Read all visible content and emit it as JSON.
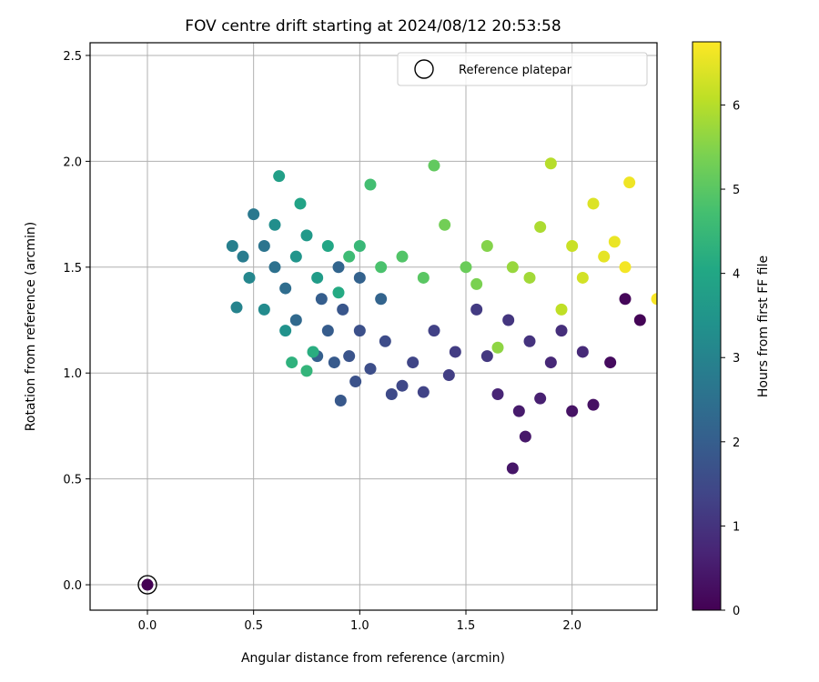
{
  "chart_data": {
    "type": "scatter",
    "title": "FOV centre drift starting at 2024/08/12 20:53:58",
    "xlabel": "Angular distance from reference (arcmin)",
    "ylabel": "Rotation from reference (arcmin)",
    "xlim": [
      -0.27,
      2.4
    ],
    "ylim": [
      -0.12,
      2.56
    ],
    "xticks": [
      "0.0",
      "0.5",
      "1.0",
      "1.5",
      "2.0"
    ],
    "xtick_values": [
      0,
      0.5,
      1.0,
      1.5,
      2.0
    ],
    "yticks": [
      "0.0",
      "0.5",
      "1.0",
      "1.5",
      "2.0",
      "2.5"
    ],
    "ytick_values": [
      0,
      0.5,
      1.0,
      1.5,
      2.0,
      2.5
    ],
    "grid": true,
    "legend": {
      "placement": "top-right",
      "entries": [
        "Reference platepar"
      ]
    },
    "colorbar": {
      "label": "Hours from first FF file",
      "colormap": "viridis",
      "range": [
        0,
        6.75
      ],
      "ticks": [
        "0",
        "1",
        "2",
        "3",
        "4",
        "5",
        "6"
      ],
      "tick_values": [
        0,
        1,
        2,
        3,
        4,
        5,
        6
      ]
    },
    "reference_point": {
      "x": 0.0,
      "y": 0.0,
      "c": 0.0
    },
    "series": [
      {
        "points": [
          [
            2.32,
            1.25,
            0.05
          ],
          [
            2.25,
            1.35,
            0.1
          ],
          [
            2.18,
            1.05,
            0.2
          ],
          [
            2.1,
            0.85,
            0.3
          ],
          [
            2.0,
            0.82,
            0.35
          ],
          [
            1.72,
            0.55,
            0.4
          ],
          [
            1.78,
            0.7,
            0.45
          ],
          [
            1.75,
            0.82,
            0.5
          ],
          [
            1.85,
            0.88,
            0.6
          ],
          [
            1.65,
            0.9,
            0.7
          ],
          [
            1.9,
            1.05,
            0.75
          ],
          [
            2.05,
            1.1,
            0.8
          ],
          [
            1.95,
            1.2,
            0.9
          ],
          [
            1.8,
            1.15,
            1.0
          ],
          [
            1.7,
            1.25,
            1.05
          ],
          [
            1.6,
            1.08,
            1.1
          ],
          [
            1.55,
            1.3,
            1.15
          ],
          [
            1.45,
            1.1,
            1.2
          ],
          [
            1.42,
            0.99,
            1.25
          ],
          [
            1.35,
            1.2,
            1.3
          ],
          [
            1.3,
            0.91,
            1.35
          ],
          [
            1.25,
            1.05,
            1.4
          ],
          [
            1.2,
            0.94,
            1.45
          ],
          [
            1.15,
            0.9,
            1.5
          ],
          [
            1.12,
            1.15,
            1.55
          ],
          [
            1.05,
            1.02,
            1.6
          ],
          [
            1.0,
            1.2,
            1.65
          ],
          [
            0.98,
            0.96,
            1.7
          ],
          [
            0.95,
            1.08,
            1.75
          ],
          [
            0.92,
            1.3,
            1.8
          ],
          [
            0.91,
            0.87,
            1.85
          ],
          [
            0.88,
            1.05,
            1.9
          ],
          [
            0.85,
            1.2,
            1.95
          ],
          [
            0.82,
            1.35,
            2.0
          ],
          [
            0.8,
            1.08,
            2.05
          ],
          [
            1.0,
            1.45,
            2.1
          ],
          [
            1.1,
            1.35,
            2.15
          ],
          [
            0.9,
            1.5,
            2.2
          ],
          [
            0.7,
            1.25,
            2.3
          ],
          [
            0.65,
            1.4,
            2.4
          ],
          [
            0.6,
            1.5,
            2.5
          ],
          [
            0.55,
            1.6,
            2.6
          ],
          [
            0.5,
            1.75,
            2.7
          ],
          [
            0.45,
            1.55,
            2.8
          ],
          [
            0.4,
            1.6,
            2.9
          ],
          [
            0.42,
            1.31,
            3.0
          ],
          [
            0.48,
            1.45,
            3.1
          ],
          [
            0.55,
            1.3,
            3.2
          ],
          [
            0.6,
            1.7,
            3.3
          ],
          [
            0.65,
            1.2,
            3.4
          ],
          [
            0.7,
            1.55,
            3.5
          ],
          [
            0.75,
            1.65,
            3.6
          ],
          [
            0.8,
            1.45,
            3.7
          ],
          [
            0.62,
            1.93,
            3.8
          ],
          [
            0.72,
            1.8,
            3.9
          ],
          [
            0.85,
            1.6,
            4.0
          ],
          [
            0.9,
            1.38,
            4.1
          ],
          [
            0.78,
            1.1,
            4.2
          ],
          [
            0.68,
            1.05,
            4.3
          ],
          [
            0.75,
            1.01,
            4.4
          ],
          [
            1.0,
            1.6,
            4.5
          ],
          [
            0.95,
            1.55,
            4.6
          ],
          [
            1.05,
            1.89,
            4.7
          ],
          [
            1.1,
            1.5,
            4.8
          ],
          [
            1.2,
            1.55,
            4.9
          ],
          [
            1.3,
            1.45,
            5.0
          ],
          [
            1.35,
            1.98,
            5.1
          ],
          [
            1.5,
            1.5,
            5.2
          ],
          [
            1.4,
            1.7,
            5.3
          ],
          [
            1.55,
            1.42,
            5.4
          ],
          [
            1.6,
            1.6,
            5.5
          ],
          [
            1.65,
            1.12,
            5.6
          ],
          [
            1.72,
            1.5,
            5.7
          ],
          [
            1.8,
            1.45,
            5.8
          ],
          [
            1.85,
            1.69,
            5.9
          ],
          [
            1.9,
            1.99,
            6.0
          ],
          [
            1.95,
            1.3,
            6.1
          ],
          [
            2.0,
            1.6,
            6.2
          ],
          [
            2.05,
            1.45,
            6.3
          ],
          [
            2.1,
            1.8,
            6.4
          ],
          [
            2.15,
            1.55,
            6.5
          ],
          [
            2.2,
            1.62,
            6.55
          ],
          [
            2.27,
            1.9,
            6.6
          ],
          [
            2.25,
            1.5,
            6.65
          ],
          [
            2.4,
            1.35,
            6.7
          ]
        ]
      }
    ]
  }
}
